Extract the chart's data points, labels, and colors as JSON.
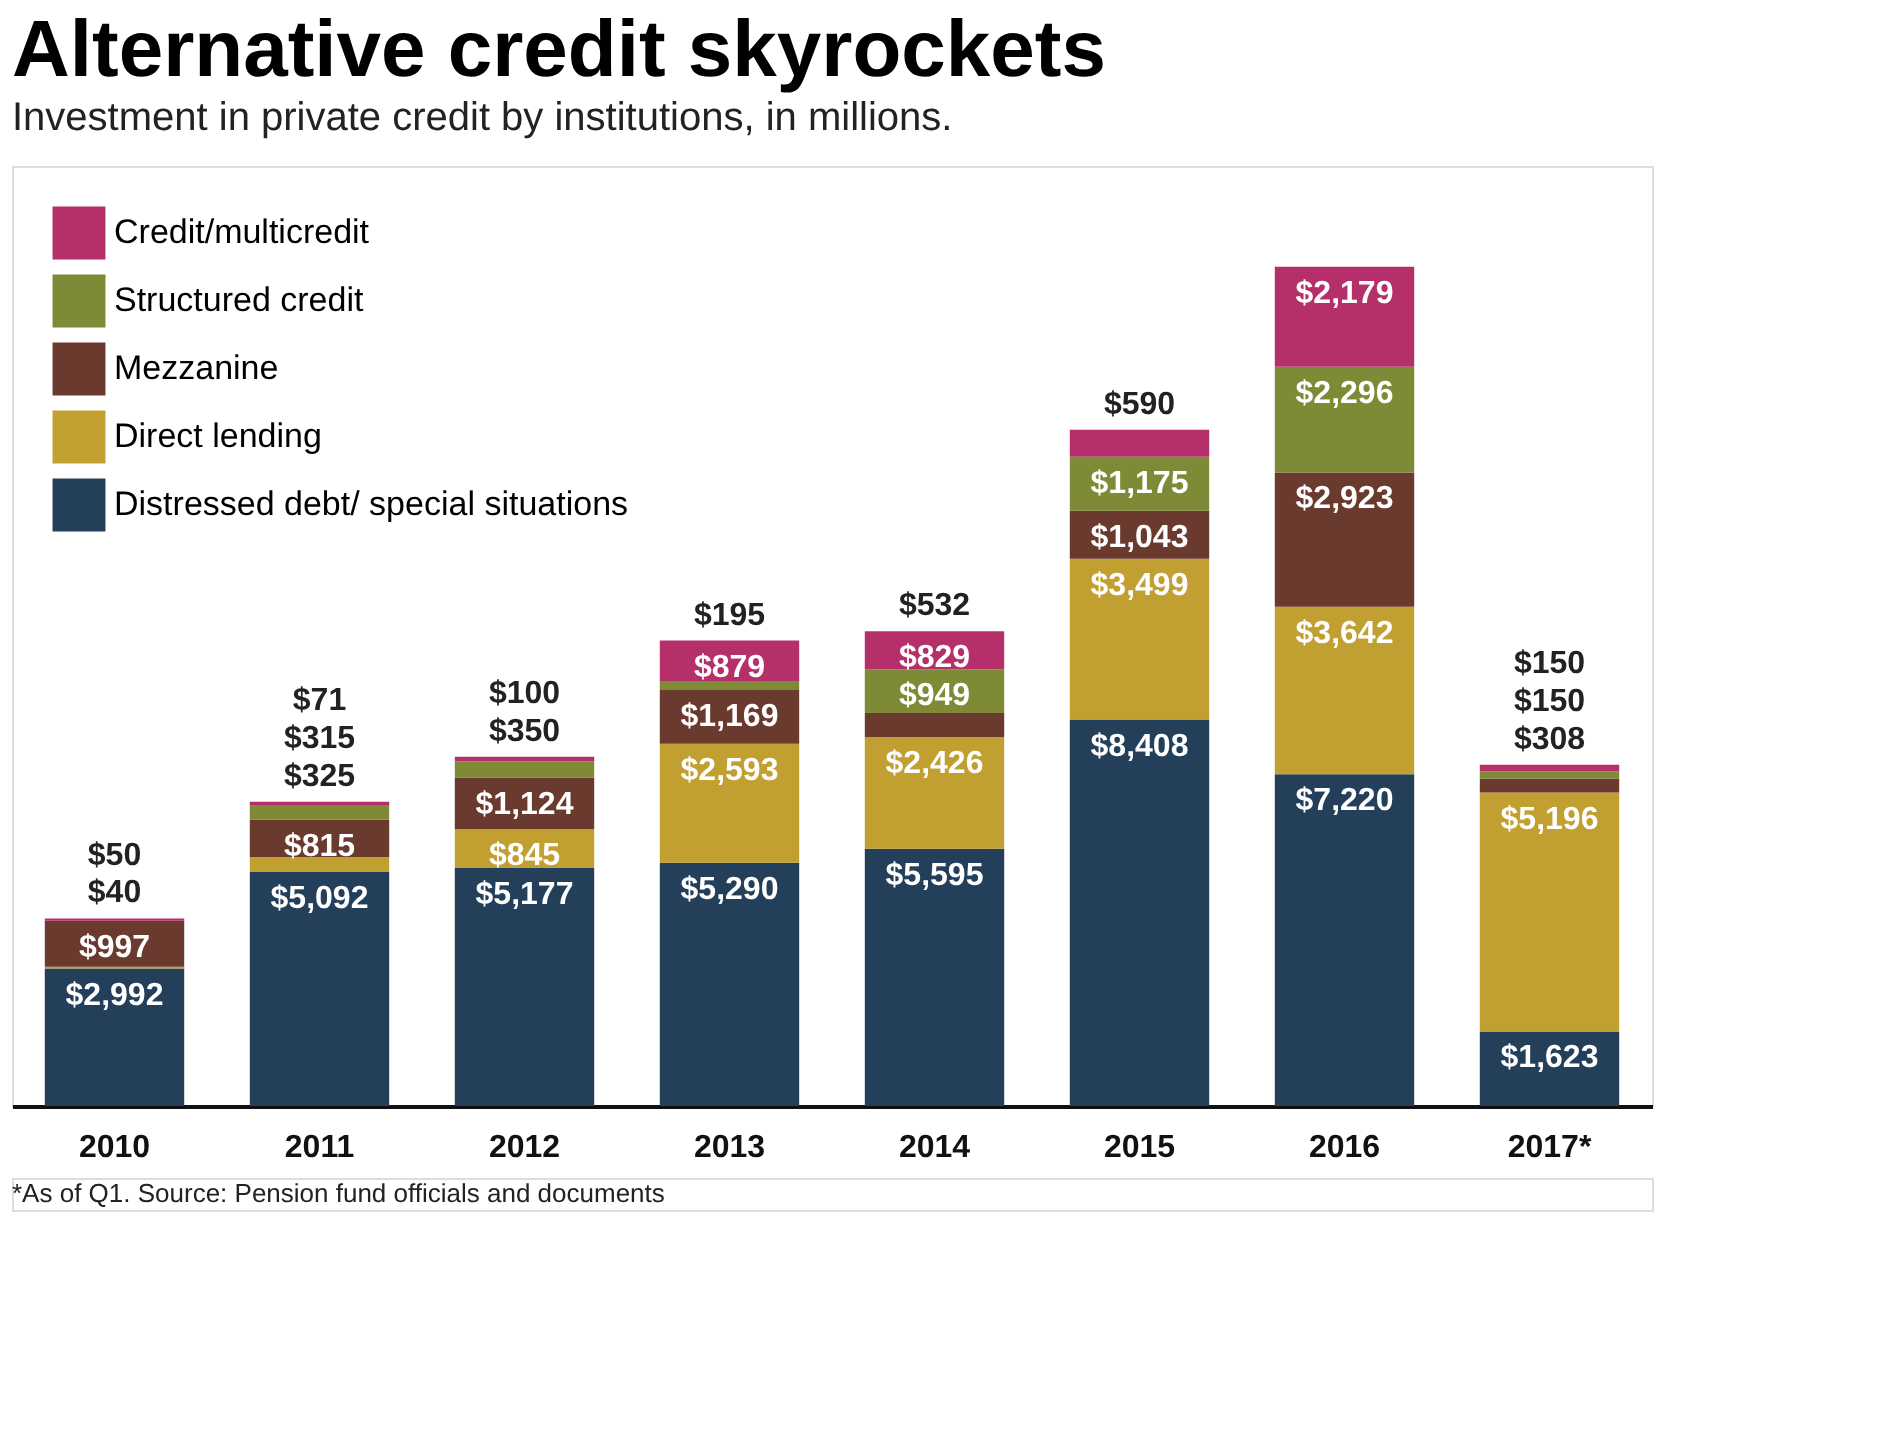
{
  "chart_data": {
    "type": "bar",
    "title": "Alternative credit skyrockets",
    "subtitle": "Investment in private credit by institutions, in millions.",
    "categories": [
      "2010",
      "2011",
      "2012",
      "2013",
      "2014",
      "2015",
      "2016",
      "2017*"
    ],
    "stacked": true,
    "data_labels": true,
    "legend": "top left",
    "grid": false,
    "series": [
      {
        "name": "Distressed debt/ special situations",
        "color": "#243f5a",
        "values": [
          2992,
          5092,
          5177,
          5290,
          5595,
          8408,
          7220,
          1623
        ],
        "value_labels": [
          "$2,992",
          "$5,092",
          "$5,177",
          "$5,290",
          "$5,595",
          "$8,408",
          "$7,220",
          "$1,623"
        ]
      },
      {
        "name": "Direct lending",
        "color": "#c29f31",
        "values": [
          40,
          325,
          845,
          2593,
          2426,
          3499,
          3642,
          5196
        ],
        "value_labels": [
          "$40",
          "$325",
          "$845",
          "$2,593",
          "$2,426",
          "$3,499",
          "$3,642",
          "$5,196"
        ]
      },
      {
        "name": "Mezzanine",
        "color": "#6b3a2e",
        "values": [
          997,
          815,
          1124,
          1169,
          532,
          1043,
          2923,
          308
        ],
        "value_labels": [
          "$997",
          "$815",
          "$1,124",
          "$1,169",
          "$532",
          "$1,043",
          "$2,923",
          "$308"
        ]
      },
      {
        "name": "Structured credit",
        "color": "#7f8a36",
        "values": [
          null,
          315,
          350,
          195,
          949,
          1175,
          2296,
          150
        ],
        "value_labels": [
          null,
          "$315",
          "$350",
          "$195",
          "$949",
          "$1,175",
          "$2,296",
          "$150"
        ]
      },
      {
        "name": "Credit/multicredit",
        "color": "#b5306a",
        "values": [
          50,
          71,
          100,
          879,
          829,
          590,
          2179,
          150
        ],
        "value_labels": [
          "$50",
          "$71",
          "$100",
          "$879",
          "$829",
          "$590",
          "$2,179",
          "$150"
        ]
      }
    ],
    "annotations": [
      "*As of Q1. Source: Pension fund officials and documents"
    ]
  }
}
